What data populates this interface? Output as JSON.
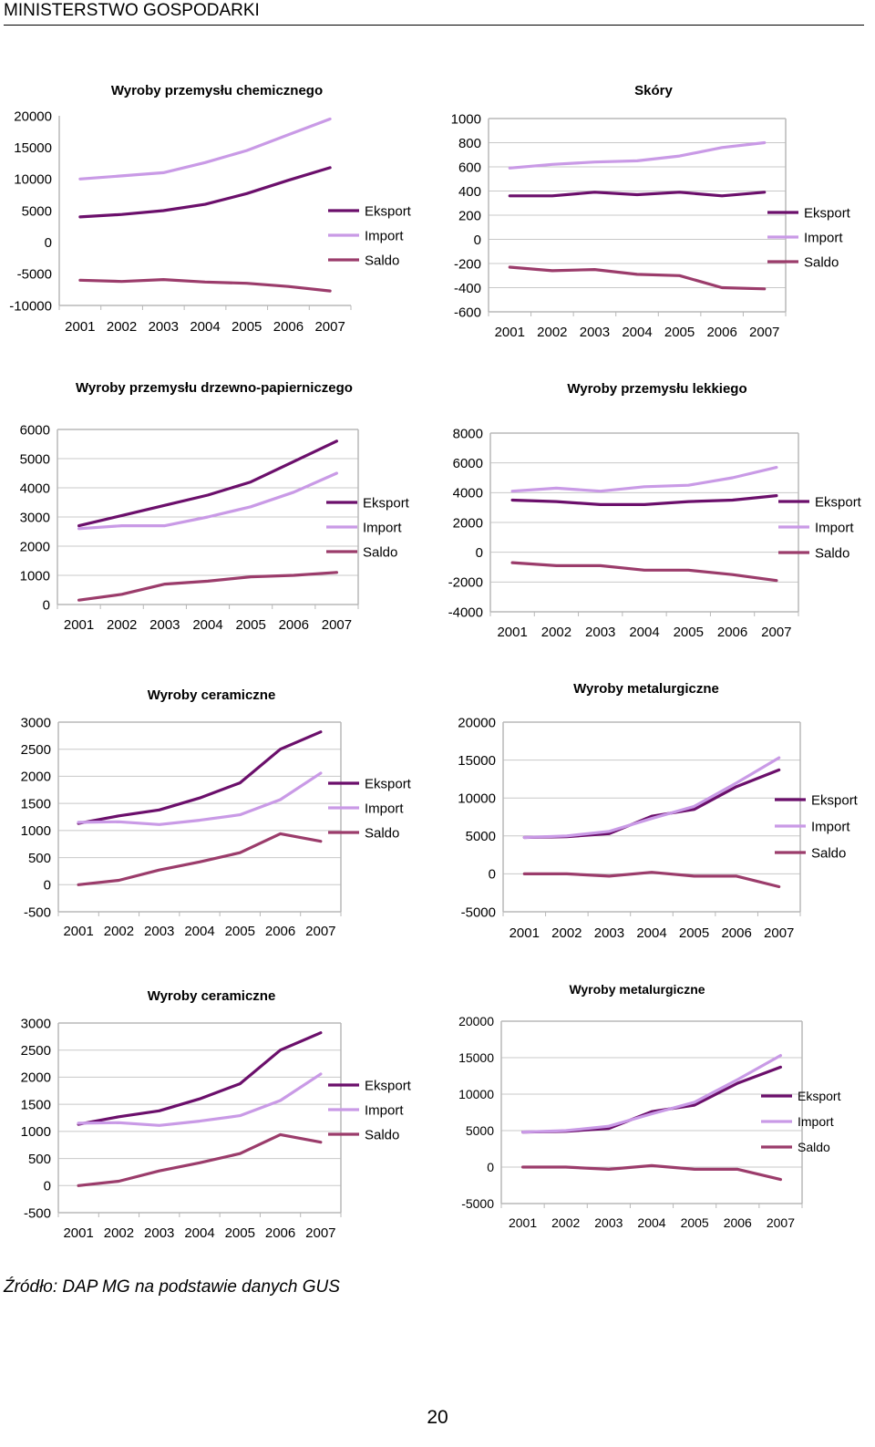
{
  "header": {
    "title": "MINISTERSTWO GOSPODARKI"
  },
  "footer": {
    "source": "Źródło: DAP MG na podstawie danych GUS",
    "page_number": "20"
  },
  "colors": {
    "eksport": "#6b0f6b",
    "import": "#c99ae6",
    "saldo": "#9b3c6b",
    "grid": "#c8c8c8",
    "frame": "#b8b8b8"
  },
  "chart_data": [
    {
      "type": "line",
      "title": "Wyroby przemysłu chemicznego",
      "categories": [
        "2001",
        "2002",
        "2003",
        "2004",
        "2005",
        "2006",
        "2007"
      ],
      "yticks": [
        20000,
        15000,
        10000,
        5000,
        0,
        -5000,
        -10000
      ],
      "ylim": [
        -10000,
        20000
      ],
      "grid": false,
      "series": [
        {
          "name": "Eksport",
          "values": [
            4000,
            4400,
            5000,
            6000,
            7700,
            9800,
            11800
          ]
        },
        {
          "name": "Import",
          "values": [
            10000,
            10500,
            11000,
            12600,
            14500,
            17000,
            19500
          ]
        },
        {
          "name": "Saldo",
          "values": [
            -6000,
            -6200,
            -5900,
            -6300,
            -6500,
            -7000,
            -7700
          ]
        }
      ]
    },
    {
      "type": "line",
      "title": "Skóry",
      "categories": [
        "2001",
        "2002",
        "2003",
        "2004",
        "2005",
        "2006",
        "2007"
      ],
      "yticks": [
        1000,
        800,
        600,
        400,
        200,
        0,
        -200,
        -400,
        -600
      ],
      "ylim": [
        -600,
        1000
      ],
      "grid": true,
      "series": [
        {
          "name": "Eksport",
          "values": [
            360,
            360,
            390,
            370,
            390,
            360,
            390
          ]
        },
        {
          "name": "Import",
          "values": [
            590,
            620,
            640,
            650,
            690,
            760,
            800
          ]
        },
        {
          "name": "Saldo",
          "values": [
            -230,
            -260,
            -250,
            -290,
            -300,
            -400,
            -410
          ]
        }
      ]
    },
    {
      "type": "line",
      "title": "Wyroby przemysłu drzewno-papierniczego",
      "categories": [
        "2001",
        "2002",
        "2003",
        "2004",
        "2005",
        "2006",
        "2007"
      ],
      "yticks": [
        6000,
        5000,
        4000,
        3000,
        2000,
        1000,
        0
      ],
      "ylim": [
        0,
        6000
      ],
      "grid": true,
      "series": [
        {
          "name": "Eksport",
          "values": [
            2700,
            3050,
            3400,
            3750,
            4200,
            4900,
            5600
          ]
        },
        {
          "name": "Import",
          "values": [
            2600,
            2700,
            2700,
            3000,
            3350,
            3850,
            4500
          ]
        },
        {
          "name": "Saldo",
          "values": [
            150,
            350,
            700,
            800,
            950,
            1000,
            1100
          ]
        }
      ]
    },
    {
      "type": "line",
      "title": "Wyroby przemysłu lekkiego",
      "categories": [
        "2001",
        "2002",
        "2003",
        "2004",
        "2005",
        "2006",
        "2007"
      ],
      "yticks": [
        8000,
        6000,
        4000,
        2000,
        0,
        -2000,
        -4000
      ],
      "ylim": [
        -4000,
        8000
      ],
      "grid": true,
      "series": [
        {
          "name": "Eksport",
          "values": [
            3500,
            3400,
            3200,
            3200,
            3400,
            3500,
            3800
          ]
        },
        {
          "name": "Import",
          "values": [
            4100,
            4300,
            4100,
            4400,
            4500,
            5000,
            5700
          ]
        },
        {
          "name": "Saldo",
          "values": [
            -700,
            -900,
            -900,
            -1200,
            -1200,
            -1500,
            -1900
          ]
        }
      ]
    },
    {
      "type": "line",
      "title": "Wyroby ceramiczne",
      "categories": [
        "2001",
        "2002",
        "2003",
        "2004",
        "2005",
        "2006",
        "2007"
      ],
      "yticks": [
        3000,
        2500,
        2000,
        1500,
        1000,
        500,
        0,
        -500
      ],
      "ylim": [
        -500,
        3000
      ],
      "grid": true,
      "series": [
        {
          "name": "Eksport",
          "values": [
            1130,
            1270,
            1380,
            1600,
            1880,
            2500,
            2820
          ]
        },
        {
          "name": "Import",
          "values": [
            1150,
            1160,
            1110,
            1190,
            1290,
            1570,
            2060
          ]
        },
        {
          "name": "Saldo",
          "values": [
            0,
            80,
            270,
            420,
            590,
            940,
            800
          ]
        }
      ]
    },
    {
      "type": "line",
      "title": "Wyroby metalurgiczne",
      "categories": [
        "2001",
        "2002",
        "2003",
        "2004",
        "2005",
        "2006",
        "2007"
      ],
      "yticks": [
        20000,
        15000,
        10000,
        5000,
        0,
        -5000
      ],
      "ylim": [
        -5000,
        20000
      ],
      "grid": true,
      "series": [
        {
          "name": "Eksport",
          "values": [
            4800,
            4900,
            5300,
            7600,
            8500,
            11500,
            13700
          ]
        },
        {
          "name": "Import",
          "values": [
            4800,
            5000,
            5600,
            7300,
            8900,
            12000,
            15300
          ]
        },
        {
          "name": "Saldo",
          "values": [
            0,
            0,
            -300,
            200,
            -300,
            -300,
            -1700
          ]
        }
      ]
    },
    {
      "type": "line",
      "title": "Wyroby ceramiczne",
      "categories": [
        "2001",
        "2002",
        "2003",
        "2004",
        "2005",
        "2006",
        "2007"
      ],
      "yticks": [
        3000,
        2500,
        2000,
        1500,
        1000,
        500,
        0,
        -500
      ],
      "ylim": [
        -500,
        3000
      ],
      "grid": true,
      "series": [
        {
          "name": "Eksport",
          "values": [
            1130,
            1270,
            1380,
            1600,
            1880,
            2500,
            2820
          ]
        },
        {
          "name": "Import",
          "values": [
            1150,
            1160,
            1110,
            1190,
            1290,
            1570,
            2060
          ]
        },
        {
          "name": "Saldo",
          "values": [
            0,
            80,
            270,
            420,
            590,
            940,
            800
          ]
        }
      ]
    },
    {
      "type": "line",
      "title": "Wyroby metalurgiczne",
      "categories": [
        "2001",
        "2002",
        "2003",
        "2004",
        "2005",
        "2006",
        "2007"
      ],
      "yticks": [
        20000,
        15000,
        10000,
        5000,
        0,
        -5000
      ],
      "ylim": [
        -5000,
        20000
      ],
      "grid": true,
      "series": [
        {
          "name": "Eksport",
          "values": [
            4800,
            4900,
            5300,
            7600,
            8500,
            11500,
            13700
          ]
        },
        {
          "name": "Import",
          "values": [
            4800,
            5000,
            5600,
            7300,
            8900,
            12000,
            15300
          ]
        },
        {
          "name": "Saldo",
          "values": [
            0,
            0,
            -300,
            200,
            -300,
            -300,
            -1700
          ]
        }
      ]
    }
  ]
}
